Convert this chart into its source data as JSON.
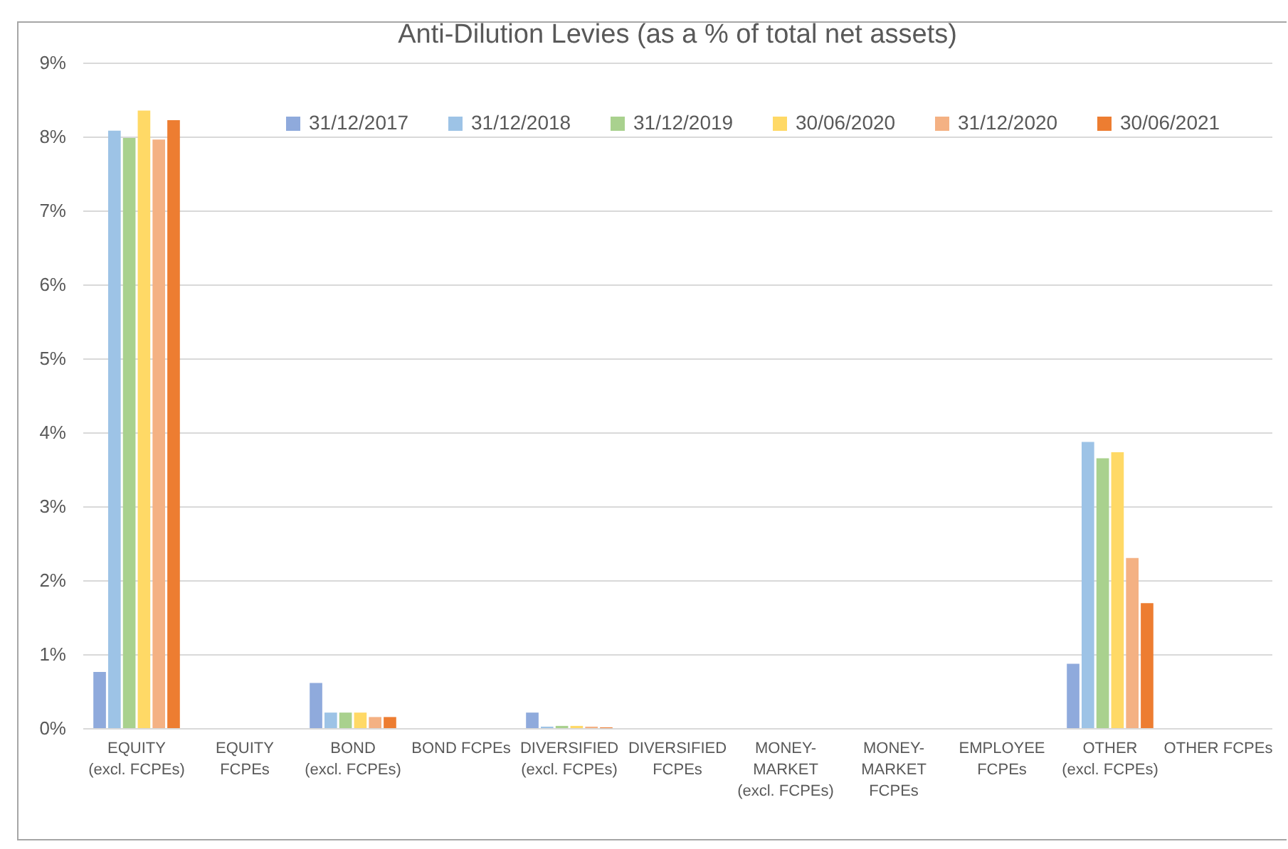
{
  "chart_data": {
    "type": "bar",
    "title": "Anti-Dilution Levies (as a % of total net assets)",
    "categories": [
      "EQUITY (excl. FCPEs)",
      "EQUITY FCPEs",
      "BOND (excl. FCPEs)",
      "BOND FCPEs",
      "DIVERSIFIED (excl. FCPEs)",
      "DIVERSIFIED FCPEs",
      "MONEY-MARKET (excl. FCPEs)",
      "MONEY-MARKET FCPEs",
      "EMPLOYEE FCPEs",
      "OTHER (excl. FCPEs)",
      "OTHER FCPEs"
    ],
    "series": [
      {
        "name": "31/12/2017",
        "color": "#8faadc",
        "values": [
          0.76,
          null,
          0.61,
          null,
          0.21,
          null,
          null,
          null,
          null,
          0.87,
          null
        ]
      },
      {
        "name": "31/12/2018",
        "color": "#9dc3e6",
        "values": [
          8.08,
          null,
          0.21,
          null,
          0.02,
          null,
          null,
          null,
          null,
          3.87,
          null
        ]
      },
      {
        "name": "31/12/2019",
        "color": "#a9d18e",
        "values": [
          7.98,
          null,
          0.21,
          null,
          0.03,
          null,
          null,
          null,
          null,
          3.65,
          null
        ]
      },
      {
        "name": "30/06/2020",
        "color": "#ffd966",
        "values": [
          8.35,
          null,
          0.21,
          null,
          0.03,
          null,
          null,
          null,
          null,
          3.73,
          null
        ]
      },
      {
        "name": "31/12/2020",
        "color": "#f4b183",
        "values": [
          7.96,
          null,
          0.15,
          null,
          0.02,
          null,
          null,
          null,
          null,
          2.3,
          null
        ]
      },
      {
        "name": "30/06/2021",
        "color": "#ed7d31",
        "values": [
          8.22,
          null,
          0.15,
          null,
          0.01,
          null,
          null,
          null,
          null,
          1.69,
          null
        ]
      }
    ],
    "ylim": [
      0,
      9
    ],
    "yticks": [
      {
        "value": 0,
        "label": "0%"
      },
      {
        "value": 1,
        "label": "1%"
      },
      {
        "value": 2,
        "label": "2%"
      },
      {
        "value": 3,
        "label": "3%"
      },
      {
        "value": 4,
        "label": "4%"
      },
      {
        "value": 5,
        "label": "5%"
      },
      {
        "value": 6,
        "label": "6%"
      },
      {
        "value": 7,
        "label": "7%"
      },
      {
        "value": 8,
        "label": "8%"
      },
      {
        "value": 9,
        "label": "9%"
      }
    ],
    "grid": "y",
    "legend": "top right"
  }
}
